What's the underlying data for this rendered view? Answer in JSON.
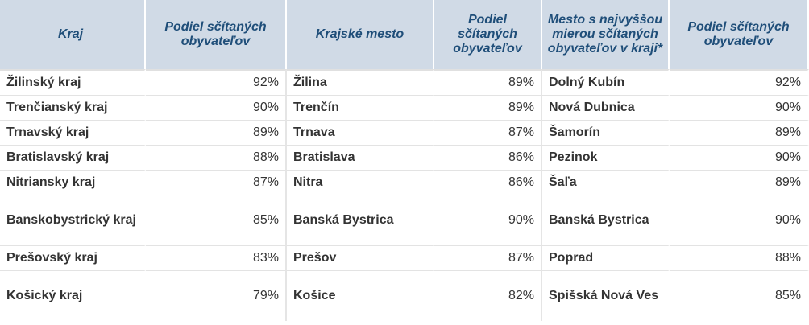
{
  "headers": [
    "Kraj",
    "Podiel sčítaných obyvateľov",
    "Krajské mesto",
    "Podiel sčítaných obyvateľov",
    "Mesto s najvyššou mierou sčítaných obyvateľov v kraji*",
    "Podiel sčítaných obyvateľov"
  ],
  "rows": [
    {
      "kraj": "Žilinský kraj",
      "kraj_pct": "92%",
      "mesto": "Žilina",
      "mesto_pct": "89%",
      "top": "Dolný Kubín",
      "top_pct": "92%"
    },
    {
      "kraj": "Trenčianský kraj",
      "kraj_pct": "90%",
      "mesto": "Trenčín",
      "mesto_pct": "89%",
      "top": "Nová Dubnica",
      "top_pct": "90%"
    },
    {
      "kraj": "Trnavský kraj",
      "kraj_pct": "89%",
      "mesto": "Trnava",
      "mesto_pct": "87%",
      "top": "Šamorín",
      "top_pct": "89%"
    },
    {
      "kraj": "Bratislavský kraj",
      "kraj_pct": "88%",
      "mesto": "Bratislava",
      "mesto_pct": "86%",
      "top": "Pezinok",
      "top_pct": "90%"
    },
    {
      "kraj": "Nitriansky kraj",
      "kraj_pct": "87%",
      "mesto": "Nitra",
      "mesto_pct": "86%",
      "top": "Šaľa",
      "top_pct": "89%"
    },
    {
      "kraj": "Banskobystrický kraj",
      "kraj_pct": "85%",
      "mesto": "Banská Bystrica",
      "mesto_pct": "90%",
      "top": "Banská Bystrica",
      "top_pct": "90%"
    },
    {
      "kraj": "Prešovský kraj",
      "kraj_pct": "83%",
      "mesto": "Prešov",
      "mesto_pct": "87%",
      "top": "Poprad",
      "top_pct": "88%"
    },
    {
      "kraj": "Košický kraj",
      "kraj_pct": "79%",
      "mesto": "Košice",
      "mesto_pct": "82%",
      "top": "Spišská Nová Ves",
      "top_pct": "85%"
    }
  ]
}
